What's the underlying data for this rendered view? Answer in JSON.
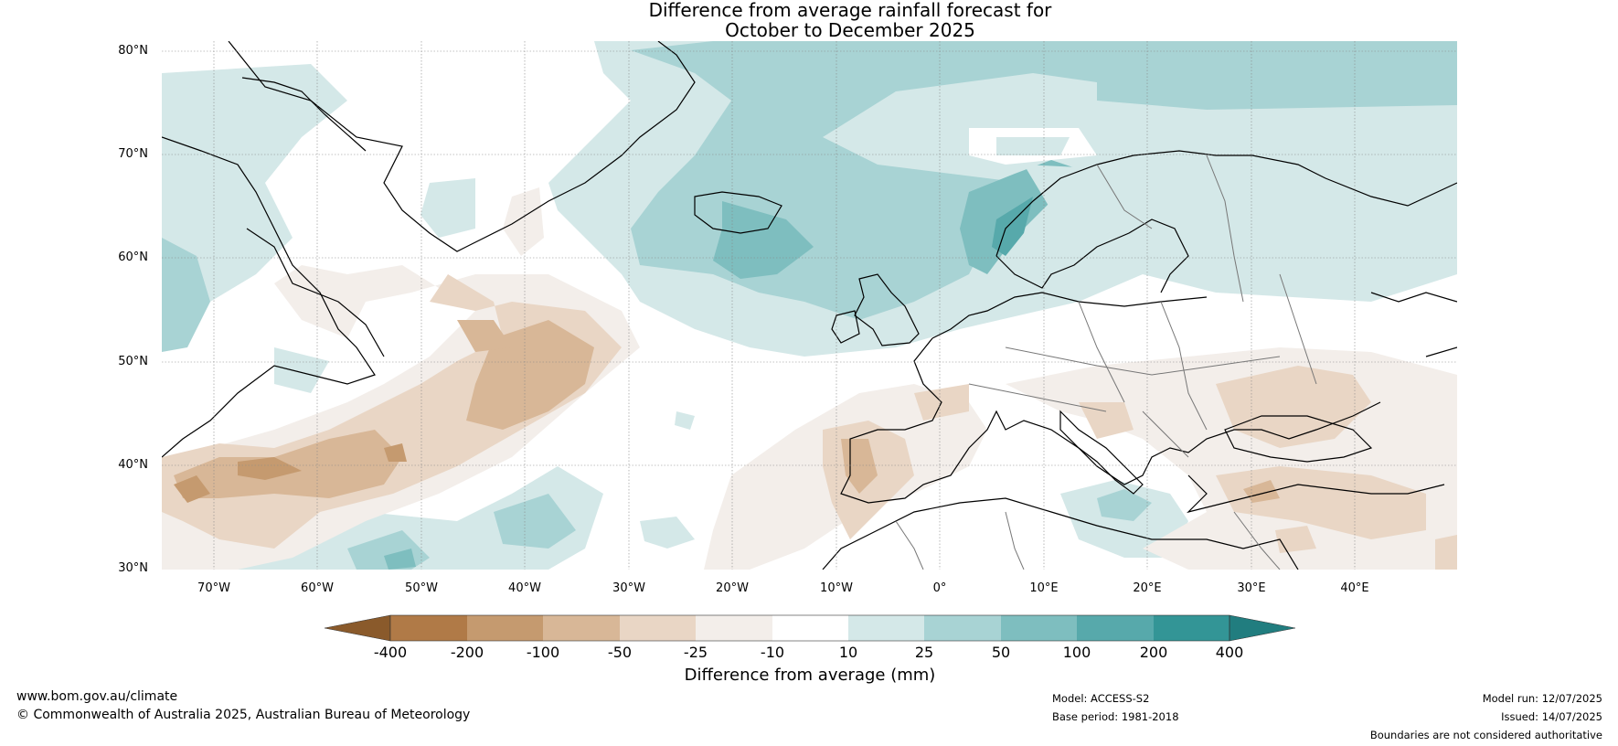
{
  "title_line1": "Difference from average rainfall forecast for",
  "title_line2": "October to December 2025",
  "lat_labels": [
    "80°N",
    "70°N",
    "60°N",
    "50°N",
    "40°N",
    "30°N"
  ],
  "lon_labels": [
    "70°W",
    "60°W",
    "50°W",
    "40°W",
    "30°W",
    "20°W",
    "10°W",
    "0°",
    "10°E",
    "20°E",
    "30°E",
    "40°E"
  ],
  "colorbar": {
    "ticks": [
      "-400",
      "-200",
      "-100",
      "-50",
      "-25",
      "-10",
      "10",
      "25",
      "50",
      "100",
      "200",
      "400"
    ],
    "label": "Difference from average (mm)",
    "colors": [
      "#8a5a2b",
      "#b07a47",
      "#c59a6f",
      "#d8b797",
      "#e9d6c5",
      "#f3eeea",
      "#ffffff",
      "#d4e8e8",
      "#a8d3d4",
      "#7ebebf",
      "#57a9ab",
      "#339596",
      "#217d7f"
    ]
  },
  "footer": {
    "website": "www.bom.gov.au/climate",
    "copyright": "© Commonwealth of Australia 2025, Australian Bureau of Meteorology",
    "model": "Model: ACCESS-S2",
    "base_period": "Base period: 1981-2018",
    "model_run": "Model run: 12/07/2025",
    "issued": "Issued: 14/07/2025",
    "disclaimer": "Boundaries are not considered authoritative"
  }
}
